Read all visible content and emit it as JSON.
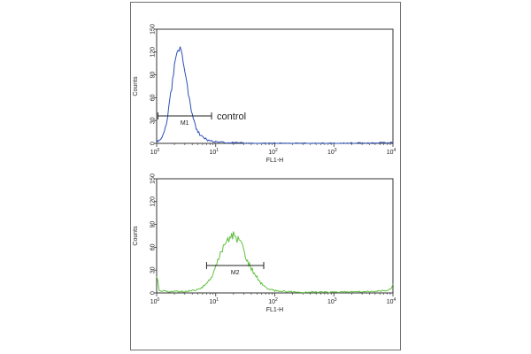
{
  "chart_data": [
    {
      "type": "line",
      "name_text": "",
      "xlabel": "FL1-H",
      "ylabel": "Counts",
      "x_scale": "log",
      "xlim": [
        1,
        10000
      ],
      "ylim": [
        0,
        150
      ],
      "x_ticks": [
        {
          "base": "10",
          "exp": "0",
          "value": 1
        },
        {
          "base": "10",
          "exp": "1",
          "value": 10
        },
        {
          "base": "10",
          "exp": "2",
          "value": 100
        },
        {
          "base": "10",
          "exp": "3",
          "value": 1000
        },
        {
          "base": "10",
          "exp": "4",
          "value": 10000
        }
      ],
      "y_ticks": [
        "0",
        "30",
        "60",
        "90",
        "120",
        "150"
      ],
      "color": "#2b4fb5",
      "series": [
        {
          "x": [
            1,
            1.2,
            1.4,
            1.6,
            1.8,
            2.0,
            2.2,
            2.4,
            2.6,
            2.8,
            3.0,
            3.3,
            3.6,
            4.0,
            4.5,
            5.0,
            6.0,
            7.0,
            8.0,
            10,
            15,
            20,
            40,
            100,
            1000,
            10000
          ],
          "y": [
            2,
            6,
            20,
            45,
            75,
            100,
            115,
            125,
            122,
            110,
            95,
            75,
            55,
            38,
            24,
            15,
            8,
            5,
            3,
            2,
            1,
            1,
            0,
            0,
            0,
            1
          ]
        }
      ],
      "gate": {
        "label": "M1",
        "x_start": 1.05,
        "x_end": 8.5,
        "y": 36
      },
      "annotation": "control"
    },
    {
      "type": "line",
      "xlabel": "FL1-H",
      "ylabel": "Counts",
      "x_scale": "log",
      "xlim": [
        1,
        10000
      ],
      "ylim": [
        0,
        150
      ],
      "x_ticks": [
        {
          "base": "10",
          "exp": "0",
          "value": 1
        },
        {
          "base": "10",
          "exp": "1",
          "value": 10
        },
        {
          "base": "10",
          "exp": "2",
          "value": 100
        },
        {
          "base": "10",
          "exp": "3",
          "value": 1000
        },
        {
          "base": "10",
          "exp": "4",
          "value": 10000
        }
      ],
      "y_ticks": [
        "0",
        "30",
        "60",
        "90",
        "120",
        "150"
      ],
      "color": "#5fbf3f",
      "series": [
        {
          "x": [
            1,
            1.1,
            1.5,
            2,
            3,
            4,
            5,
            6,
            7,
            8,
            9,
            10,
            12,
            14,
            16,
            18,
            20,
            22,
            25,
            28,
            32,
            36,
            40,
            50,
            60,
            70,
            80,
            100,
            150,
            300,
            1000,
            5000,
            9000,
            10000
          ],
          "y": [
            25,
            3,
            2,
            2,
            2,
            3,
            4,
            8,
            12,
            18,
            25,
            35,
            50,
            62,
            70,
            74,
            76,
            72,
            68,
            60,
            50,
            40,
            32,
            20,
            12,
            8,
            5,
            3,
            2,
            1,
            1,
            2,
            4,
            12
          ]
        }
      ],
      "gate": {
        "label": "M2",
        "x_start": 7,
        "x_end": 65,
        "y": 36
      }
    }
  ]
}
